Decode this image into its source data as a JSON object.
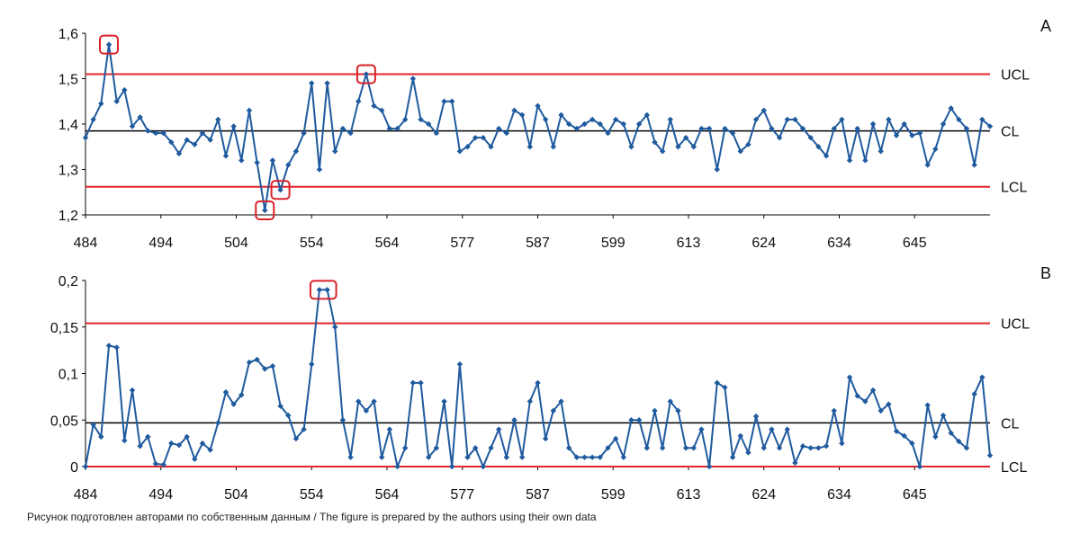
{
  "caption": "Рисунок подготовлен авторами по собственным данным / The figure is prepared by the authors using their own data",
  "colors": {
    "series": "#1f5a9e",
    "limit": "#e0252b",
    "center": "#000000",
    "highlight": "#d9232a"
  },
  "chart_data": [
    {
      "type": "line",
      "panel_label": "A",
      "x_tick_labels": [
        "484",
        "494",
        "504",
        "554",
        "564",
        "577",
        "587",
        "599",
        "613",
        "624",
        "634",
        "645"
      ],
      "ylim": [
        1.2,
        1.6
      ],
      "y_ticks": [
        1.2,
        1.3,
        1.4,
        1.5,
        1.6
      ],
      "y_tick_labels": [
        "1,2",
        "1,3",
        "1,4",
        "1,5",
        "1,6"
      ],
      "limits": {
        "UCL": 1.51,
        "CL": 1.385,
        "LCL": 1.262
      },
      "limit_labels": {
        "UCL": "UCL",
        "CL": "CL",
        "LCL": "LCL"
      },
      "values": [
        1.37,
        1.41,
        1.445,
        1.575,
        1.45,
        1.475,
        1.395,
        1.415,
        1.385,
        1.38,
        1.38,
        1.36,
        1.335,
        1.365,
        1.355,
        1.38,
        1.365,
        1.41,
        1.33,
        1.395,
        1.32,
        1.43,
        1.315,
        1.21,
        1.32,
        1.255,
        1.31,
        1.34,
        1.38,
        1.49,
        1.3,
        1.49,
        1.34,
        1.39,
        1.38,
        1.45,
        1.51,
        1.44,
        1.43,
        1.39,
        1.39,
        1.41,
        1.5,
        1.41,
        1.4,
        1.38,
        1.45,
        1.45,
        1.34,
        1.35,
        1.37,
        1.37,
        1.35,
        1.39,
        1.38,
        1.43,
        1.42,
        1.35,
        1.44,
        1.41,
        1.35,
        1.42,
        1.4,
        1.39,
        1.4,
        1.41,
        1.4,
        1.38,
        1.41,
        1.4,
        1.35,
        1.4,
        1.42,
        1.36,
        1.34,
        1.41,
        1.35,
        1.37,
        1.35,
        1.39,
        1.39,
        1.3,
        1.39,
        1.38,
        1.34,
        1.355,
        1.41,
        1.43,
        1.39,
        1.37,
        1.41,
        1.41,
        1.39,
        1.37,
        1.35,
        1.33,
        1.39,
        1.41,
        1.32,
        1.39,
        1.32,
        1.4,
        1.34,
        1.41,
        1.375,
        1.4,
        1.375,
        1.38,
        1.31,
        1.345,
        1.4,
        1.435,
        1.41,
        1.39,
        1.31,
        1.41,
        1.395
      ],
      "highlighted_indices": [
        3,
        23,
        25,
        36
      ]
    },
    {
      "type": "line",
      "panel_label": "B",
      "x_tick_labels": [
        "484",
        "494",
        "504",
        "554",
        "564",
        "577",
        "587",
        "599",
        "613",
        "624",
        "634",
        "645"
      ],
      "ylim": [
        0,
        0.2
      ],
      "y_ticks": [
        0,
        0.05,
        0.1,
        0.15,
        0.2
      ],
      "y_tick_labels": [
        "0",
        "0,05",
        "0,1",
        "0,15",
        "0,2"
      ],
      "limits": {
        "UCL": 0.154,
        "CL": 0.047,
        "LCL": 0
      },
      "limit_labels": {
        "UCL": "UCL",
        "CL": "CL",
        "LCL": "LCL"
      },
      "values": [
        0,
        0.045,
        0.032,
        0.13,
        0.128,
        0.028,
        0.082,
        0.022,
        0.032,
        0.003,
        0.002,
        0.025,
        0.023,
        0.032,
        0.008,
        0.025,
        0.018,
        0.047,
        0.08,
        0.067,
        0.077,
        0.112,
        0.115,
        0.105,
        0.108,
        0.065,
        0.055,
        0.03,
        0.04,
        0.11,
        0.19,
        0.19,
        0.15,
        0.05,
        0.01,
        0.07,
        0.06,
        0.07,
        0.01,
        0.04,
        0.0,
        0.02,
        0.09,
        0.09,
        0.01,
        0.02,
        0.07,
        0.0,
        0.11,
        0.01,
        0.02,
        0.0,
        0.02,
        0.04,
        0.01,
        0.05,
        0.01,
        0.07,
        0.09,
        0.03,
        0.06,
        0.07,
        0.02,
        0.01,
        0.01,
        0.01,
        0.01,
        0.02,
        0.03,
        0.01,
        0.05,
        0.05,
        0.02,
        0.06,
        0.02,
        0.07,
        0.06,
        0.02,
        0.02,
        0.04,
        0.0,
        0.09,
        0.085,
        0.01,
        0.033,
        0.015,
        0.054,
        0.02,
        0.04,
        0.02,
        0.04,
        0.004,
        0.022,
        0.02,
        0.02,
        0.022,
        0.06,
        0.025,
        0.096,
        0.076,
        0.07,
        0.082,
        0.06,
        0.067,
        0.038,
        0.033,
        0.025,
        0.0,
        0.066,
        0.032,
        0.055,
        0.036,
        0.027,
        0.02,
        0.078,
        0.096,
        0.012
      ],
      "highlighted_indices": [
        30,
        31
      ]
    }
  ]
}
